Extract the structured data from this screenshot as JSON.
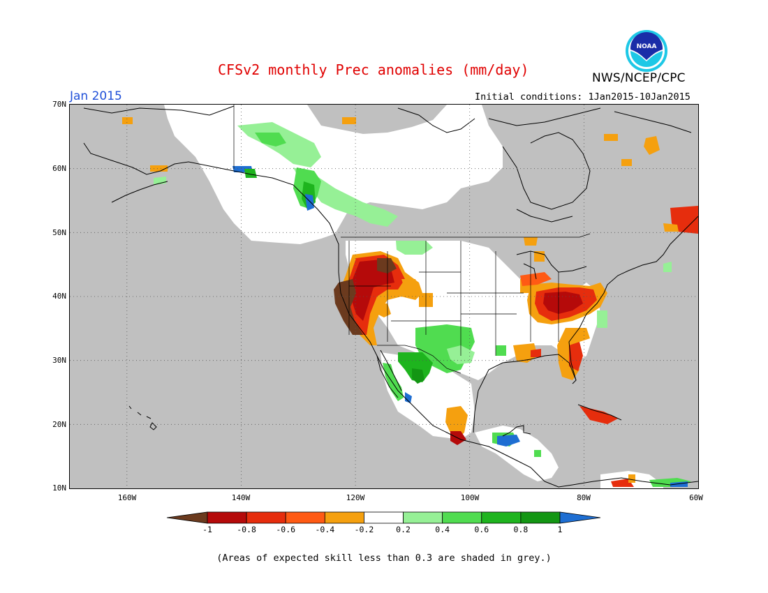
{
  "header": {
    "title": "CFSv2 monthly Prec anomalies (mm/day)",
    "agency": "NWS/NCEP/CPC",
    "month": "Jan 2015",
    "initial_conditions": "Initial conditions: 1Jan2015-10Jan2015",
    "logo_text": "NOAA"
  },
  "colors": {
    "title": "#e00000",
    "month": "#1f4fd8",
    "skill_grey": "#c0c0c0",
    "land_fill": "#ffffff",
    "ocean": "#c0c0c0"
  },
  "map": {
    "lat_range": [
      10,
      70
    ],
    "lon_range": [
      -170,
      -60
    ],
    "lat_labels": [
      "70N",
      "60N",
      "50N",
      "40N",
      "30N",
      "20N",
      "10N"
    ],
    "lon_labels": [
      "160W",
      "140W",
      "120W",
      "100W",
      "80W",
      "60W"
    ],
    "grid": "dotted"
  },
  "colorbar": {
    "labels": [
      "-1",
      "-0.8",
      "-0.6",
      "-0.4",
      "-0.2",
      "0.2",
      "0.4",
      "0.6",
      "0.8",
      "1"
    ],
    "bins": [
      {
        "color": "#6b3a1e"
      },
      {
        "color": "#b50a0a"
      },
      {
        "color": "#e62d0d"
      },
      {
        "color": "#ff5a14"
      },
      {
        "color": "#f5a00f"
      },
      {
        "color": "#ffffff"
      },
      {
        "color": "#96f096"
      },
      {
        "color": "#50dc50"
      },
      {
        "color": "#1eb41e"
      },
      {
        "color": "#139613"
      },
      {
        "color": "#1e6ed2"
      }
    ]
  },
  "footnote": "(Areas of expected skill less than 0.3 are shaded in grey.)"
}
